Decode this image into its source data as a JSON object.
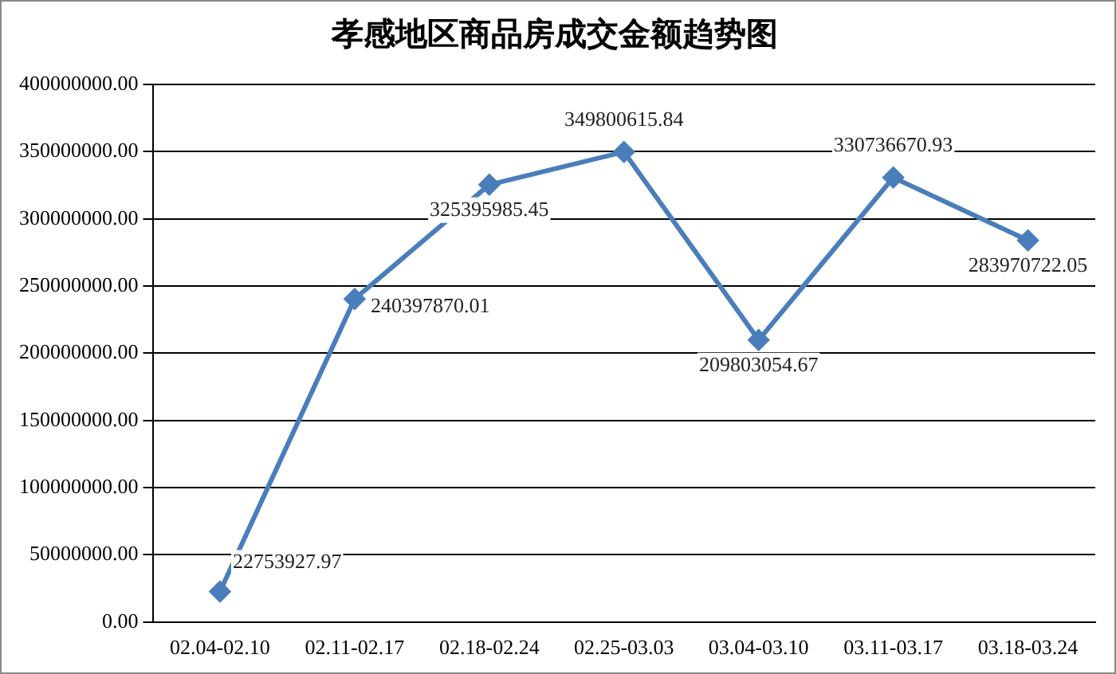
{
  "chart_data": {
    "type": "line",
    "title": "孝感地区商品房成交金额趋势图",
    "categories": [
      "02.04-02.10",
      "02.11-02.17",
      "02.18-02.24",
      "02.25-03.03",
      "03.04-03.10",
      "03.11-03.17",
      "03.18-03.24"
    ],
    "series": [
      {
        "color": "#4a7ebb",
        "values": [
          22753927.97,
          240397870.01,
          325395985.45,
          349800615.84,
          209803054.67,
          330736670.93,
          283970722.05
        ]
      }
    ],
    "ylim": [
      0,
      400000000
    ],
    "yticks": [
      {
        "value": 0,
        "label": "0.00"
      },
      {
        "value": 50000000,
        "label": "50000000.00"
      },
      {
        "value": 100000000,
        "label": "100000000.00"
      },
      {
        "value": 150000000,
        "label": "150000000.00"
      },
      {
        "value": 200000000,
        "label": "200000000.00"
      },
      {
        "value": 250000000,
        "label": "250000000.00"
      },
      {
        "value": 300000000,
        "label": "300000000.00"
      },
      {
        "value": 350000000,
        "label": "350000000.00"
      },
      {
        "value": 400000000,
        "label": "400000000.00"
      }
    ],
    "grid": "y",
    "marker": "diamond",
    "line_style": "solid",
    "data_labels": true,
    "legend": false
  }
}
